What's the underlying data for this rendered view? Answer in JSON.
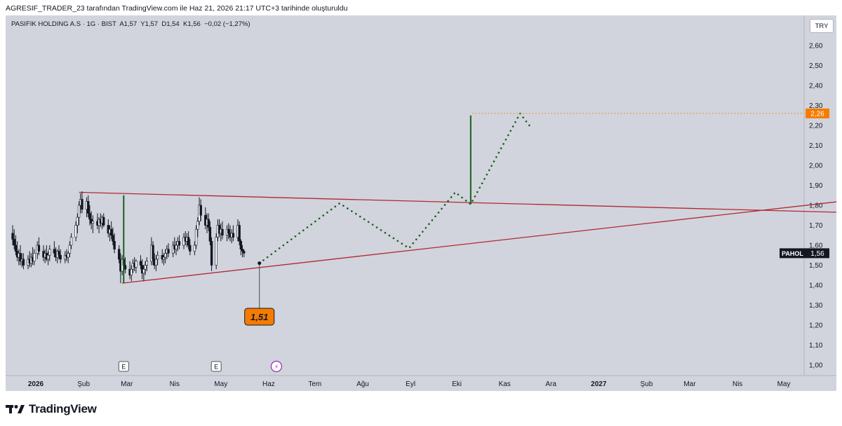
{
  "header": {
    "attribution": "AGRESIF_TRADER_23 tarafından TradingView.com ile Haz 21, 2026 21:17 UTC+3 tarihinde oluşturuldu"
  },
  "symbol_info": "PASIFIK HOLDING A.S · 1G · BIST  A1,57  Y1,57  D1,54  K1,56  −0,02 (−1,27%)",
  "currency": "TRY",
  "footer": {
    "brand": "TradingView"
  },
  "colors": {
    "background": "#d1d4dc",
    "up_candle": "#ffffff",
    "down_candle": "#131722",
    "trendline": "#b22833",
    "projection": "#1b5e20",
    "target_label": "#f57c00",
    "price_label": "#131722",
    "event_icon": "#9c27b0"
  },
  "chart_data": {
    "type": "candlestick",
    "title": "PASIFIK HOLDING A.S",
    "ylim": [
      0.95,
      2.66
    ],
    "y_ticks": [
      "2,60",
      "2,50",
      "2,40",
      "2,30",
      "2,20",
      "2,10",
      "2,00",
      "1,90",
      "1,80",
      "1,70",
      "1,60",
      "1,50",
      "1,40",
      "1,30",
      "1,20",
      "1,10",
      "1,00"
    ],
    "y_tick_values": [
      2.6,
      2.5,
      2.4,
      2.3,
      2.2,
      2.1,
      2.0,
      1.9,
      1.8,
      1.7,
      1.6,
      1.5,
      1.4,
      1.3,
      1.2,
      1.1,
      1.0
    ],
    "x_ticks": [
      {
        "label": "2026",
        "day": 0,
        "bold": true
      },
      {
        "label": "Şub",
        "day": 31
      },
      {
        "label": "Mar",
        "day": 59
      },
      {
        "label": "Nis",
        "day": 90
      },
      {
        "label": "May",
        "day": 120
      },
      {
        "label": "Haz",
        "day": 151
      },
      {
        "label": "Tem",
        "day": 181
      },
      {
        "label": "Ağu",
        "day": 212
      },
      {
        "label": "Eyl",
        "day": 243
      },
      {
        "label": "Eki",
        "day": 273
      },
      {
        "label": "Kas",
        "day": 304
      },
      {
        "label": "Ara",
        "day": 334
      },
      {
        "label": "2027",
        "day": 365,
        "bold": true
      },
      {
        "label": "Şub",
        "day": 396
      },
      {
        "label": "Mar",
        "day": 424
      },
      {
        "label": "Nis",
        "day": 455
      },
      {
        "label": "May",
        "day": 485
      }
    ],
    "candles": [
      {
        "d": -15,
        "o": 1.66,
        "h": 1.7,
        "l": 1.6,
        "c": 1.63
      },
      {
        "d": -14,
        "o": 1.63,
        "h": 1.68,
        "l": 1.58,
        "c": 1.6
      },
      {
        "d": -13,
        "o": 1.6,
        "h": 1.65,
        "l": 1.55,
        "c": 1.57
      },
      {
        "d": -12,
        "o": 1.57,
        "h": 1.62,
        "l": 1.52,
        "c": 1.54
      },
      {
        "d": -11,
        "o": 1.54,
        "h": 1.58,
        "l": 1.5,
        "c": 1.56
      },
      {
        "d": -10,
        "o": 1.56,
        "h": 1.6,
        "l": 1.5,
        "c": 1.52
      },
      {
        "d": -9,
        "o": 1.52,
        "h": 1.56,
        "l": 1.49,
        "c": 1.53
      },
      {
        "d": -8,
        "o": 1.53,
        "h": 1.56,
        "l": 1.48,
        "c": 1.5
      },
      {
        "d": -5,
        "o": 1.5,
        "h": 1.55,
        "l": 1.48,
        "c": 1.53
      },
      {
        "d": -4,
        "o": 1.53,
        "h": 1.57,
        "l": 1.49,
        "c": 1.51
      },
      {
        "d": -3,
        "o": 1.51,
        "h": 1.56,
        "l": 1.49,
        "c": 1.54
      },
      {
        "d": -2,
        "o": 1.54,
        "h": 1.59,
        "l": 1.5,
        "c": 1.52
      },
      {
        "d": -1,
        "o": 1.52,
        "h": 1.58,
        "l": 1.5,
        "c": 1.56
      },
      {
        "d": 1,
        "o": 1.56,
        "h": 1.62,
        "l": 1.53,
        "c": 1.6
      },
      {
        "d": 2,
        "o": 1.6,
        "h": 1.64,
        "l": 1.55,
        "c": 1.57
      },
      {
        "d": 5,
        "o": 1.57,
        "h": 1.6,
        "l": 1.52,
        "c": 1.54
      },
      {
        "d": 6,
        "o": 1.54,
        "h": 1.58,
        "l": 1.51,
        "c": 1.56
      },
      {
        "d": 7,
        "o": 1.56,
        "h": 1.6,
        "l": 1.52,
        "c": 1.53
      },
      {
        "d": 8,
        "o": 1.53,
        "h": 1.57,
        "l": 1.5,
        "c": 1.55
      },
      {
        "d": 9,
        "o": 1.55,
        "h": 1.6,
        "l": 1.52,
        "c": 1.58
      },
      {
        "d": 12,
        "o": 1.58,
        "h": 1.62,
        "l": 1.54,
        "c": 1.56
      },
      {
        "d": 13,
        "o": 1.56,
        "h": 1.59,
        "l": 1.52,
        "c": 1.54
      },
      {
        "d": 14,
        "o": 1.54,
        "h": 1.58,
        "l": 1.51,
        "c": 1.57
      },
      {
        "d": 15,
        "o": 1.57,
        "h": 1.6,
        "l": 1.53,
        "c": 1.55
      },
      {
        "d": 16,
        "o": 1.55,
        "h": 1.58,
        "l": 1.51,
        "c": 1.53
      },
      {
        "d": 19,
        "o": 1.53,
        "h": 1.57,
        "l": 1.51,
        "c": 1.55
      },
      {
        "d": 20,
        "o": 1.55,
        "h": 1.58,
        "l": 1.52,
        "c": 1.54
      },
      {
        "d": 21,
        "o": 1.54,
        "h": 1.57,
        "l": 1.51,
        "c": 1.56
      },
      {
        "d": 22,
        "o": 1.56,
        "h": 1.62,
        "l": 1.54,
        "c": 1.6
      },
      {
        "d": 23,
        "o": 1.6,
        "h": 1.66,
        "l": 1.58,
        "c": 1.64
      },
      {
        "d": 26,
        "o": 1.64,
        "h": 1.72,
        "l": 1.62,
        "c": 1.7
      },
      {
        "d": 27,
        "o": 1.7,
        "h": 1.76,
        "l": 1.66,
        "c": 1.74
      },
      {
        "d": 28,
        "o": 1.74,
        "h": 1.82,
        "l": 1.7,
        "c": 1.8
      },
      {
        "d": 29,
        "o": 1.8,
        "h": 1.86,
        "l": 1.76,
        "c": 1.83
      },
      {
        "d": 30,
        "o": 1.83,
        "h": 1.87,
        "l": 1.76,
        "c": 1.78
      },
      {
        "d": 33,
        "o": 1.78,
        "h": 1.84,
        "l": 1.74,
        "c": 1.82
      },
      {
        "d": 34,
        "o": 1.82,
        "h": 1.85,
        "l": 1.74,
        "c": 1.76
      },
      {
        "d": 35,
        "o": 1.76,
        "h": 1.8,
        "l": 1.7,
        "c": 1.73
      },
      {
        "d": 36,
        "o": 1.73,
        "h": 1.77,
        "l": 1.68,
        "c": 1.71
      },
      {
        "d": 37,
        "o": 1.71,
        "h": 1.75,
        "l": 1.66,
        "c": 1.72
      },
      {
        "d": 40,
        "o": 1.72,
        "h": 1.76,
        "l": 1.68,
        "c": 1.7
      },
      {
        "d": 41,
        "o": 1.7,
        "h": 1.74,
        "l": 1.66,
        "c": 1.73
      },
      {
        "d": 42,
        "o": 1.73,
        "h": 1.76,
        "l": 1.69,
        "c": 1.71
      },
      {
        "d": 43,
        "o": 1.71,
        "h": 1.75,
        "l": 1.68,
        "c": 1.74
      },
      {
        "d": 44,
        "o": 1.74,
        "h": 1.76,
        "l": 1.69,
        "c": 1.7
      },
      {
        "d": 47,
        "o": 1.7,
        "h": 1.73,
        "l": 1.64,
        "c": 1.66
      },
      {
        "d": 48,
        "o": 1.66,
        "h": 1.7,
        "l": 1.62,
        "c": 1.68
      },
      {
        "d": 49,
        "o": 1.68,
        "h": 1.72,
        "l": 1.63,
        "c": 1.65
      },
      {
        "d": 50,
        "o": 1.65,
        "h": 1.69,
        "l": 1.6,
        "c": 1.62
      },
      {
        "d": 51,
        "o": 1.62,
        "h": 1.66,
        "l": 1.56,
        "c": 1.58
      },
      {
        "d": 54,
        "o": 1.58,
        "h": 1.6,
        "l": 1.51,
        "c": 1.53
      },
      {
        "d": 55,
        "o": 1.53,
        "h": 1.56,
        "l": 1.41,
        "c": 1.47
      },
      {
        "d": 56,
        "o": 1.47,
        "h": 1.55,
        "l": 1.45,
        "c": 1.53
      },
      {
        "d": 57,
        "o": 1.53,
        "h": 1.56,
        "l": 1.48,
        "c": 1.5
      },
      {
        "d": 58,
        "o": 1.5,
        "h": 1.54,
        "l": 1.46,
        "c": 1.48
      },
      {
        "d": 61,
        "o": 1.48,
        "h": 1.52,
        "l": 1.43,
        "c": 1.45
      },
      {
        "d": 62,
        "o": 1.45,
        "h": 1.5,
        "l": 1.42,
        "c": 1.48
      },
      {
        "d": 63,
        "o": 1.48,
        "h": 1.53,
        "l": 1.46,
        "c": 1.51
      },
      {
        "d": 64,
        "o": 1.51,
        "h": 1.54,
        "l": 1.47,
        "c": 1.49
      },
      {
        "d": 65,
        "o": 1.49,
        "h": 1.53,
        "l": 1.46,
        "c": 1.52
      },
      {
        "d": 68,
        "o": 1.52,
        "h": 1.55,
        "l": 1.48,
        "c": 1.5
      },
      {
        "d": 69,
        "o": 1.5,
        "h": 1.53,
        "l": 1.43,
        "c": 1.46
      },
      {
        "d": 70,
        "o": 1.46,
        "h": 1.5,
        "l": 1.42,
        "c": 1.48
      },
      {
        "d": 71,
        "o": 1.48,
        "h": 1.52,
        "l": 1.45,
        "c": 1.5
      },
      {
        "d": 72,
        "o": 1.5,
        "h": 1.54,
        "l": 1.47,
        "c": 1.52
      },
      {
        "d": 75,
        "o": 1.52,
        "h": 1.64,
        "l": 1.5,
        "c": 1.6
      },
      {
        "d": 76,
        "o": 1.6,
        "h": 1.62,
        "l": 1.5,
        "c": 1.53
      },
      {
        "d": 77,
        "o": 1.53,
        "h": 1.56,
        "l": 1.48,
        "c": 1.5
      },
      {
        "d": 78,
        "o": 1.5,
        "h": 1.55,
        "l": 1.47,
        "c": 1.53
      },
      {
        "d": 79,
        "o": 1.53,
        "h": 1.57,
        "l": 1.5,
        "c": 1.55
      },
      {
        "d": 82,
        "o": 1.55,
        "h": 1.58,
        "l": 1.51,
        "c": 1.53
      },
      {
        "d": 83,
        "o": 1.53,
        "h": 1.56,
        "l": 1.5,
        "c": 1.54
      },
      {
        "d": 84,
        "o": 1.54,
        "h": 1.58,
        "l": 1.51,
        "c": 1.56
      },
      {
        "d": 85,
        "o": 1.56,
        "h": 1.6,
        "l": 1.53,
        "c": 1.58
      },
      {
        "d": 86,
        "o": 1.58,
        "h": 1.61,
        "l": 1.54,
        "c": 1.56
      },
      {
        "d": 89,
        "o": 1.56,
        "h": 1.62,
        "l": 1.54,
        "c": 1.6
      },
      {
        "d": 90,
        "o": 1.6,
        "h": 1.64,
        "l": 1.56,
        "c": 1.58
      },
      {
        "d": 91,
        "o": 1.58,
        "h": 1.62,
        "l": 1.55,
        "c": 1.6
      },
      {
        "d": 92,
        "o": 1.6,
        "h": 1.64,
        "l": 1.57,
        "c": 1.62
      },
      {
        "d": 93,
        "o": 1.62,
        "h": 1.65,
        "l": 1.58,
        "c": 1.6
      },
      {
        "d": 96,
        "o": 1.6,
        "h": 1.66,
        "l": 1.58,
        "c": 1.64
      },
      {
        "d": 97,
        "o": 1.64,
        "h": 1.67,
        "l": 1.6,
        "c": 1.62
      },
      {
        "d": 98,
        "o": 1.62,
        "h": 1.66,
        "l": 1.59,
        "c": 1.64
      },
      {
        "d": 99,
        "o": 1.64,
        "h": 1.67,
        "l": 1.58,
        "c": 1.6
      },
      {
        "d": 100,
        "o": 1.6,
        "h": 1.63,
        "l": 1.55,
        "c": 1.57
      },
      {
        "d": 103,
        "o": 1.57,
        "h": 1.62,
        "l": 1.55,
        "c": 1.6
      },
      {
        "d": 104,
        "o": 1.6,
        "h": 1.7,
        "l": 1.58,
        "c": 1.68
      },
      {
        "d": 105,
        "o": 1.68,
        "h": 1.74,
        "l": 1.64,
        "c": 1.72
      },
      {
        "d": 106,
        "o": 1.72,
        "h": 1.84,
        "l": 1.7,
        "c": 1.8
      },
      {
        "d": 107,
        "o": 1.8,
        "h": 1.83,
        "l": 1.72,
        "c": 1.75
      },
      {
        "d": 110,
        "o": 1.75,
        "h": 1.79,
        "l": 1.68,
        "c": 1.7
      },
      {
        "d": 111,
        "o": 1.7,
        "h": 1.76,
        "l": 1.66,
        "c": 1.73
      },
      {
        "d": 112,
        "o": 1.73,
        "h": 1.76,
        "l": 1.67,
        "c": 1.69
      },
      {
        "d": 113,
        "o": 1.69,
        "h": 1.72,
        "l": 1.6,
        "c": 1.62
      },
      {
        "d": 114,
        "o": 1.62,
        "h": 1.64,
        "l": 1.47,
        "c": 1.5
      },
      {
        "d": 117,
        "o": 1.5,
        "h": 1.66,
        "l": 1.48,
        "c": 1.64
      },
      {
        "d": 118,
        "o": 1.64,
        "h": 1.73,
        "l": 1.62,
        "c": 1.7
      },
      {
        "d": 119,
        "o": 1.7,
        "h": 1.73,
        "l": 1.64,
        "c": 1.66
      },
      {
        "d": 120,
        "o": 1.66,
        "h": 1.71,
        "l": 1.62,
        "c": 1.68
      },
      {
        "d": 121,
        "o": 1.68,
        "h": 1.72,
        "l": 1.63,
        "c": 1.65
      },
      {
        "d": 124,
        "o": 1.65,
        "h": 1.7,
        "l": 1.62,
        "c": 1.68
      },
      {
        "d": 125,
        "o": 1.68,
        "h": 1.71,
        "l": 1.63,
        "c": 1.66
      },
      {
        "d": 126,
        "o": 1.66,
        "h": 1.7,
        "l": 1.62,
        "c": 1.64
      },
      {
        "d": 127,
        "o": 1.64,
        "h": 1.68,
        "l": 1.61,
        "c": 1.66
      },
      {
        "d": 128,
        "o": 1.66,
        "h": 1.7,
        "l": 1.62,
        "c": 1.64
      },
      {
        "d": 131,
        "o": 1.64,
        "h": 1.73,
        "l": 1.62,
        "c": 1.7
      },
      {
        "d": 132,
        "o": 1.7,
        "h": 1.72,
        "l": 1.6,
        "c": 1.62
      },
      {
        "d": 133,
        "o": 1.62,
        "h": 1.63,
        "l": 1.55,
        "c": 1.58
      },
      {
        "d": 134,
        "o": 1.58,
        "h": 1.6,
        "l": 1.54,
        "c": 1.57
      },
      {
        "d": 135,
        "o": 1.57,
        "h": 1.58,
        "l": 1.54,
        "c": 1.56
      }
    ],
    "trendlines": [
      {
        "name": "upper-resistance",
        "from": {
          "day": 28,
          "price": 1.865
        },
        "to": {
          "day": 545,
          "price": 1.76
        }
      },
      {
        "name": "lower-support",
        "from": {
          "day": 56,
          "price": 1.41
        },
        "to": {
          "day": 545,
          "price": 1.84
        }
      }
    ],
    "vertical_moves": [
      {
        "name": "impulse-1",
        "day": 57,
        "from": 1.41,
        "to": 1.85
      },
      {
        "name": "impulse-2",
        "day": 282,
        "from": 1.805,
        "to": 2.25
      }
    ],
    "projection_path": [
      {
        "day": 145,
        "price": 1.51
      },
      {
        "day": 197,
        "price": 1.81
      },
      {
        "day": 242,
        "price": 1.585
      },
      {
        "day": 272,
        "price": 1.865
      },
      {
        "day": 282,
        "price": 1.805
      },
      {
        "day": 314,
        "price": 2.26
      },
      {
        "day": 320,
        "price": 2.2
      }
    ],
    "target": {
      "price": 2.26,
      "label": "2,26",
      "start_day": 283
    },
    "current_price": {
      "symbol": "PAHOL",
      "label": "1,56",
      "price": 1.56
    },
    "annotation": {
      "label": "1,51",
      "day": 145,
      "price": 1.51
    },
    "events": [
      {
        "type": "earnings",
        "glyph": "E",
        "day": 57
      },
      {
        "type": "earnings",
        "glyph": "E",
        "day": 117
      },
      {
        "type": "dividend",
        "glyph": "⚡",
        "day": 156
      }
    ]
  }
}
